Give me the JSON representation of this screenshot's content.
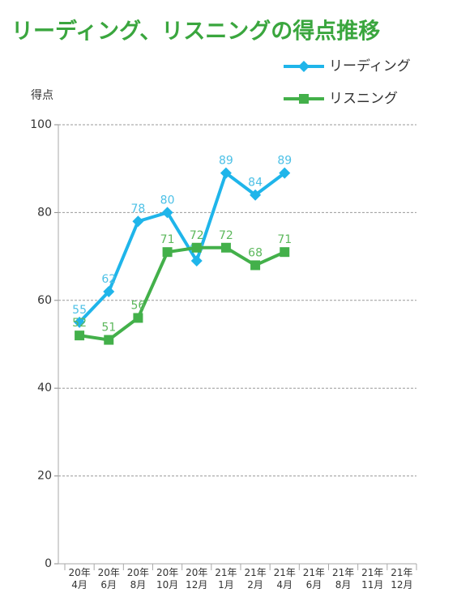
{
  "chart_data": {
    "type": "line",
    "title": "リーディング、リスニングの得点推移",
    "y_label": "得点",
    "categories": [
      "20年\n4月",
      "20年\n6月",
      "20年\n8月",
      "20年\n10月",
      "20年\n12月",
      "21年\n1月",
      "21年\n2月",
      "21年\n4月",
      "21年\n6月",
      "21年\n8月",
      "21年\n11月",
      "21年\n12月"
    ],
    "series": [
      {
        "name": "リーディング",
        "color": "#1fb5ea",
        "label_color": "#4cc0e6",
        "marker": "diamond",
        "values": [
          55,
          62,
          78,
          80,
          69,
          89,
          84,
          89,
          null,
          null,
          null,
          null
        ]
      },
      {
        "name": "リスニング",
        "color": "#43b04a",
        "label_color": "#5cb85c",
        "marker": "square",
        "values": [
          52,
          51,
          56,
          71,
          72,
          72,
          68,
          71,
          null,
          null,
          null,
          null
        ]
      }
    ],
    "ylim": [
      0,
      100
    ],
    "yticks": [
      0,
      20,
      40,
      60,
      80,
      100
    ],
    "grid": true,
    "legend": "top-right"
  }
}
